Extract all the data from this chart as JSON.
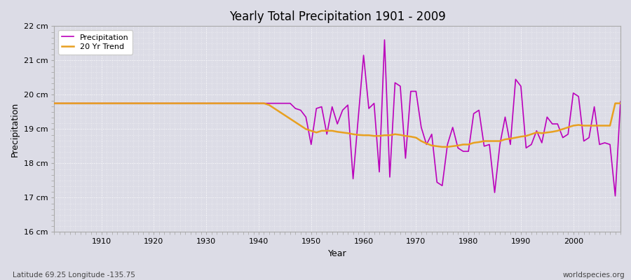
{
  "title": "Yearly Total Precipitation 1901 - 2009",
  "xlabel": "Year",
  "ylabel": "Precipitation",
  "subtitle": "Latitude 69.25 Longitude -135.75",
  "watermark": "worldspecies.org",
  "bg_color": "#dcdce6",
  "grid_color": "#ffffff",
  "precip_color": "#bb00bb",
  "trend_color": "#e8a020",
  "ylim": [
    16,
    22
  ],
  "yticks": [
    16,
    17,
    18,
    19,
    20,
    21,
    22
  ],
  "ytick_labels": [
    "16 cm",
    "17 cm",
    "18 cm",
    "19 cm",
    "20 cm",
    "21 cm",
    "22 cm"
  ],
  "xlim": [
    1901,
    2009
  ],
  "xticks": [
    1910,
    1920,
    1930,
    1940,
    1950,
    1960,
    1970,
    1980,
    1990,
    2000
  ],
  "years": [
    1901,
    1902,
    1903,
    1904,
    1905,
    1906,
    1907,
    1908,
    1909,
    1910,
    1911,
    1912,
    1913,
    1914,
    1915,
    1916,
    1917,
    1918,
    1919,
    1920,
    1921,
    1922,
    1923,
    1924,
    1925,
    1926,
    1927,
    1928,
    1929,
    1930,
    1931,
    1932,
    1933,
    1934,
    1935,
    1936,
    1937,
    1938,
    1939,
    1940,
    1941,
    1942,
    1943,
    1944,
    1945,
    1946,
    1947,
    1948,
    1949,
    1950,
    1951,
    1952,
    1953,
    1954,
    1955,
    1956,
    1957,
    1958,
    1959,
    1960,
    1961,
    1962,
    1963,
    1964,
    1965,
    1966,
    1967,
    1968,
    1969,
    1970,
    1971,
    1972,
    1973,
    1974,
    1975,
    1976,
    1977,
    1978,
    1979,
    1980,
    1981,
    1982,
    1983,
    1984,
    1985,
    1986,
    1987,
    1988,
    1989,
    1990,
    1991,
    1992,
    1993,
    1994,
    1995,
    1996,
    1997,
    1998,
    1999,
    2000,
    2001,
    2002,
    2003,
    2004,
    2005,
    2006,
    2007,
    2008,
    2009
  ],
  "precipitation": [
    19.75,
    19.75,
    19.75,
    19.75,
    19.75,
    19.75,
    19.75,
    19.75,
    19.75,
    19.75,
    19.75,
    19.75,
    19.75,
    19.75,
    19.75,
    19.75,
    19.75,
    19.75,
    19.75,
    19.75,
    19.75,
    19.75,
    19.75,
    19.75,
    19.75,
    19.75,
    19.75,
    19.75,
    19.75,
    19.75,
    19.75,
    19.75,
    19.75,
    19.75,
    19.75,
    19.75,
    19.75,
    19.75,
    19.75,
    19.75,
    19.75,
    19.75,
    19.75,
    19.75,
    19.75,
    19.75,
    19.6,
    19.55,
    19.35,
    18.55,
    19.6,
    19.65,
    18.85,
    19.65,
    19.15,
    19.55,
    19.7,
    17.55,
    19.35,
    21.15,
    19.6,
    19.75,
    17.75,
    21.6,
    17.6,
    20.35,
    20.25,
    18.15,
    20.1,
    20.1,
    19.05,
    18.55,
    18.85,
    17.45,
    17.35,
    18.55,
    19.05,
    18.45,
    18.35,
    18.35,
    19.45,
    19.55,
    18.5,
    18.55,
    17.15,
    18.55,
    19.35,
    18.55,
    20.45,
    20.25,
    18.45,
    18.55,
    18.95,
    18.6,
    19.35,
    19.15,
    19.15,
    18.75,
    18.85,
    20.05,
    19.95,
    18.65,
    18.75,
    19.65,
    18.55,
    18.6,
    18.55,
    17.05,
    19.8
  ],
  "trend": [
    19.75,
    19.75,
    19.75,
    19.75,
    19.75,
    19.75,
    19.75,
    19.75,
    19.75,
    19.75,
    19.75,
    19.75,
    19.75,
    19.75,
    19.75,
    19.75,
    19.75,
    19.75,
    19.75,
    19.75,
    19.75,
    19.75,
    19.75,
    19.75,
    19.75,
    19.75,
    19.75,
    19.75,
    19.75,
    19.75,
    19.75,
    19.75,
    19.75,
    19.75,
    19.75,
    19.75,
    19.75,
    19.75,
    19.75,
    19.75,
    19.75,
    19.7,
    19.6,
    19.5,
    19.4,
    19.3,
    19.2,
    19.1,
    19.0,
    18.95,
    18.9,
    18.95,
    18.95,
    18.95,
    18.92,
    18.9,
    18.88,
    18.85,
    18.83,
    18.82,
    18.82,
    18.8,
    18.8,
    18.82,
    18.82,
    18.85,
    18.83,
    18.8,
    18.78,
    18.75,
    18.65,
    18.58,
    18.52,
    18.5,
    18.48,
    18.48,
    18.5,
    18.52,
    18.55,
    18.55,
    18.6,
    18.62,
    18.65,
    18.65,
    18.65,
    18.65,
    18.7,
    18.72,
    18.75,
    18.78,
    18.8,
    18.85,
    18.9,
    18.88,
    18.9,
    18.92,
    18.95,
    19.0,
    19.05,
    19.1,
    19.12,
    19.1,
    19.1,
    19.1,
    19.1,
    19.1,
    19.1,
    19.75,
    19.75
  ]
}
